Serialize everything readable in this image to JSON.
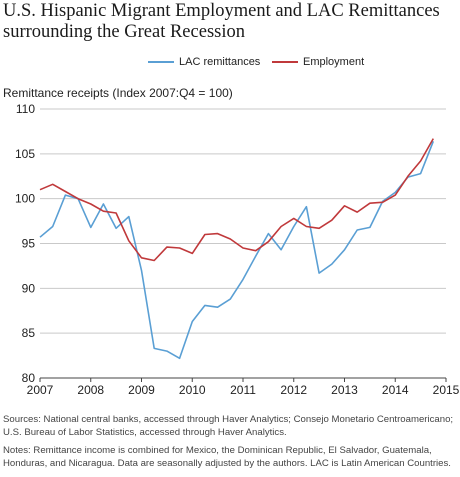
{
  "title": "U.S. Hispanic Migrant Employment and LAC Remittances surrounding the Great Recession",
  "sources": "Sources: National central banks, accessed through Haver Analytics; Consejo Monetario Centroamericano; U.S. Bureau of Labor Statistics, accessed through Haver Analytics.",
  "notes": "Notes: Remittance income is combined for Mexico, the Dominican Republic, El Salvador, Guatemala, Honduras, and Nicaragua. Data are seasonally adjusted by the authors. LAC is Latin American Countries.",
  "chart_data": {
    "type": "line",
    "title": "U.S. Hispanic Migrant Employment and LAC Remittances surrounding the Great Recession",
    "ylabel": "Remittance receipts (Index 2007:Q4 = 100)",
    "xlabel": "",
    "ylim": [
      80,
      110
    ],
    "yticks": [
      80,
      85,
      90,
      95,
      100,
      105,
      110
    ],
    "xlim": [
      2007,
      2015
    ],
    "xticks": [
      "2007",
      "2008",
      "2009",
      "2010",
      "2011",
      "2012",
      "2013",
      "2014",
      "2015"
    ],
    "grid": "horizontal",
    "legend_position": "top-center",
    "series": [
      {
        "name": "LAC remittances",
        "color": "#5a9fd4",
        "x": [
          2007.0,
          2007.25,
          2007.5,
          2007.75,
          2008.0,
          2008.25,
          2008.5,
          2008.75,
          2009.0,
          2009.25,
          2009.5,
          2009.75,
          2010.0,
          2010.25,
          2010.5,
          2010.75,
          2011.0,
          2011.25,
          2011.5,
          2011.75,
          2012.0,
          2012.25,
          2012.5,
          2012.75,
          2013.0,
          2013.25,
          2013.5,
          2013.75,
          2014.0,
          2014.25,
          2014.5,
          2014.75
        ],
        "values": [
          95.7,
          96.9,
          100.4,
          100.0,
          96.8,
          99.4,
          96.7,
          98.0,
          92.0,
          83.3,
          83.0,
          82.2,
          86.3,
          88.1,
          87.9,
          88.8,
          91.0,
          93.6,
          96.1,
          94.3,
          96.9,
          99.1,
          91.7,
          92.7,
          94.3,
          96.5,
          96.8,
          99.7,
          100.7,
          102.4,
          102.8,
          106.4
        ]
      },
      {
        "name": "Employment",
        "color": "#c0393b",
        "x": [
          2007.0,
          2007.25,
          2007.5,
          2007.75,
          2008.0,
          2008.25,
          2008.5,
          2008.75,
          2009.0,
          2009.25,
          2009.5,
          2009.75,
          2010.0,
          2010.25,
          2010.5,
          2010.75,
          2011.0,
          2011.25,
          2011.5,
          2011.75,
          2012.0,
          2012.25,
          2012.5,
          2012.75,
          2013.0,
          2013.25,
          2013.5,
          2013.75,
          2014.0,
          2014.25,
          2014.5,
          2014.75
        ],
        "values": [
          101.0,
          101.6,
          100.8,
          100.0,
          99.4,
          98.6,
          98.4,
          95.3,
          93.4,
          93.1,
          94.6,
          94.5,
          93.9,
          96.0,
          96.1,
          95.5,
          94.5,
          94.2,
          95.2,
          96.9,
          97.8,
          96.9,
          96.7,
          97.6,
          99.2,
          98.5,
          99.5,
          99.6,
          100.4,
          102.5,
          104.2,
          106.7
        ]
      }
    ]
  }
}
